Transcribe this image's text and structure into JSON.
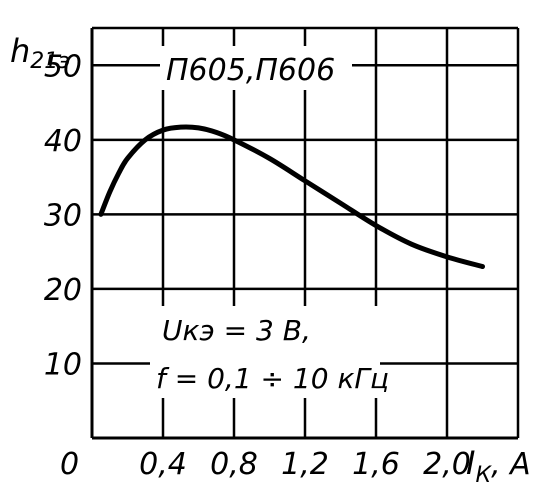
{
  "chart_data": {
    "type": "line",
    "title": "П605,П606",
    "ylabel_main": "h",
    "ylabel_sub": "21э",
    "xlabel_main": "I",
    "xlabel_sub": "К",
    "xlabel_unit": ", A",
    "origin_label": "0",
    "xlim": [
      0,
      2.4
    ],
    "ylim": [
      0,
      55
    ],
    "x_ticks": [
      {
        "value": 0.4,
        "label": "0,4"
      },
      {
        "value": 0.8,
        "label": "0,8"
      },
      {
        "value": 1.2,
        "label": "1,2"
      },
      {
        "value": 1.6,
        "label": "1,6"
      },
      {
        "value": 2.0,
        "label": "2,0"
      }
    ],
    "y_ticks": [
      {
        "value": 10,
        "label": "10"
      },
      {
        "value": 20,
        "label": "20"
      },
      {
        "value": 30,
        "label": "30"
      },
      {
        "value": 40,
        "label": "40"
      },
      {
        "value": 50,
        "label": "50"
      }
    ],
    "grid": true,
    "annotation_line1": "Uкэ = 3 В,",
    "annotation_line2": "f = 0,1 ÷ 10 кГц",
    "series": [
      {
        "x": [
          0.05,
          0.1,
          0.15,
          0.2,
          0.3,
          0.4,
          0.5,
          0.6,
          0.7,
          0.8,
          1.0,
          1.2,
          1.4,
          1.6,
          1.8,
          2.0,
          2.2
        ],
        "y": [
          30,
          33,
          35.5,
          37.5,
          40,
          41.3,
          41.7,
          41.6,
          41.0,
          40.0,
          37.5,
          34.5,
          31.5,
          28.5,
          26,
          24.3,
          23
        ]
      }
    ]
  }
}
